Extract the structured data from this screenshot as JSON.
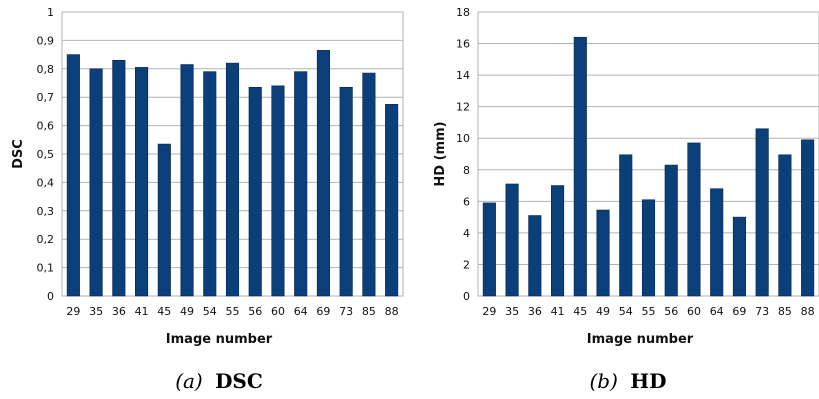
{
  "chart_data": [
    {
      "type": "bar",
      "title": "",
      "xlabel": "Image number",
      "ylabel": "DSC",
      "ylim": [
        0,
        1
      ],
      "yticks": [
        "0",
        "0,1",
        "0,2",
        "0,3",
        "0,4",
        "0,5",
        "0,6",
        "0,7",
        "0,8",
        "0,9",
        "1"
      ],
      "grid": true,
      "bar_color": "#0b3f7a",
      "categories": [
        "29",
        "35",
        "36",
        "41",
        "45",
        "49",
        "54",
        "55",
        "56",
        "60",
        "64",
        "69",
        "73",
        "85",
        "88"
      ],
      "values": [
        0.85,
        0.8,
        0.83,
        0.805,
        0.535,
        0.815,
        0.79,
        0.82,
        0.735,
        0.74,
        0.79,
        0.865,
        0.735,
        0.785,
        0.675
      ],
      "caption": {
        "letter": "(a)",
        "text": "DSC"
      }
    },
    {
      "type": "bar",
      "title": "",
      "xlabel": "Image number",
      "ylabel": "HD (mm)",
      "ylim": [
        0,
        18
      ],
      "yticks": [
        "0",
        "2",
        "4",
        "6",
        "8",
        "10",
        "12",
        "14",
        "16",
        "18"
      ],
      "grid": true,
      "bar_color": "#0b3f7a",
      "categories": [
        "29",
        "35",
        "36",
        "41",
        "45",
        "49",
        "54",
        "55",
        "56",
        "60",
        "64",
        "69",
        "73",
        "85",
        "88"
      ],
      "values": [
        5.9,
        7.1,
        5.1,
        7.0,
        16.4,
        5.45,
        8.95,
        6.1,
        8.3,
        9.7,
        6.8,
        5.0,
        10.6,
        8.95,
        9.9
      ],
      "caption": {
        "letter": "(b)",
        "text": "HD"
      }
    }
  ]
}
